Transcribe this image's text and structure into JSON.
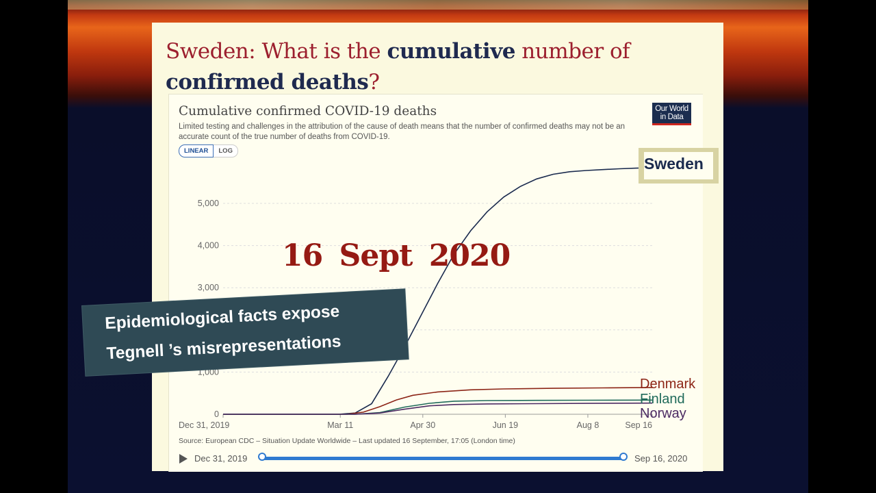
{
  "slide": {
    "title_prefix": "Sweden: What is the ",
    "title_bold1": "cumulative",
    "title_mid": " number of",
    "title_bold2": "confirmed deaths",
    "title_suffix": "?"
  },
  "chart_header": {
    "title": "Cumulative confirmed COVID-19 deaths",
    "subtitle": "Limited testing and challenges in the attribution of the cause of death means that the number of confirmed deaths may not be an accurate count of the true number of deaths from COVID-19.",
    "logo": "Our World in Data",
    "scale_options": [
      "LINEAR",
      "LOG"
    ],
    "source": "Source: European CDC – Situation Update Worldwide – Last updated 16 September, 17:05 (London time)"
  },
  "timeline": {
    "start_label": "Dec 31, 2019",
    "end_label": "Sep 16, 2020"
  },
  "overlay": {
    "date_text": "16 Sept 2020",
    "banner_line1": "Epidemiological facts expose",
    "banner_line2": "Tegnell ’s misrepresentations"
  },
  "colors": {
    "sweden": "#1a2a4e",
    "denmark": "#8c2416",
    "finland": "#1f6a5a",
    "norway": "#4b2a63",
    "accent": "#2f7ad0"
  },
  "chart_data": {
    "type": "line",
    "title": "Cumulative confirmed COVID-19 deaths",
    "ylim": [
      0,
      5900
    ],
    "yticks": [
      0,
      1000,
      2000,
      3000,
      4000,
      5000
    ],
    "ytick_labels": [
      "0",
      "1,000",
      "2,000",
      "3,000",
      "4,000",
      "5,000"
    ],
    "xtick_labels": [
      "Dec 31, 2019",
      "Mar 11",
      "Apr 30",
      "Jun 19",
      "Aug 8",
      "Sep 16"
    ],
    "xtick_days": [
      0,
      71,
      121,
      171,
      221,
      260
    ],
    "grid": true,
    "series": [
      {
        "name": "Sweden",
        "x": [
          0,
          70,
          80,
          90,
          100,
          110,
          120,
          130,
          140,
          150,
          160,
          170,
          180,
          190,
          200,
          210,
          220,
          230,
          240,
          250,
          260
        ],
        "y": [
          0,
          0,
          30,
          250,
          900,
          1600,
          2350,
          3100,
          3800,
          4350,
          4800,
          5150,
          5400,
          5580,
          5690,
          5750,
          5780,
          5800,
          5820,
          5835,
          5845
        ]
      },
      {
        "name": "Denmark",
        "x": [
          0,
          75,
          85,
          95,
          105,
          115,
          130,
          150,
          170,
          200,
          230,
          260
        ],
        "y": [
          0,
          0,
          50,
          180,
          340,
          450,
          530,
          580,
          600,
          615,
          625,
          635
        ]
      },
      {
        "name": "Finland",
        "x": [
          0,
          80,
          95,
          110,
          125,
          140,
          160,
          190,
          220,
          260
        ],
        "y": [
          0,
          0,
          40,
          170,
          260,
          310,
          325,
          330,
          333,
          336
        ]
      },
      {
        "name": "Norway",
        "x": [
          0,
          80,
          95,
          110,
          125,
          140,
          160,
          190,
          220,
          260
        ],
        "y": [
          0,
          0,
          30,
          120,
          200,
          230,
          245,
          252,
          258,
          264
        ]
      }
    ]
  }
}
